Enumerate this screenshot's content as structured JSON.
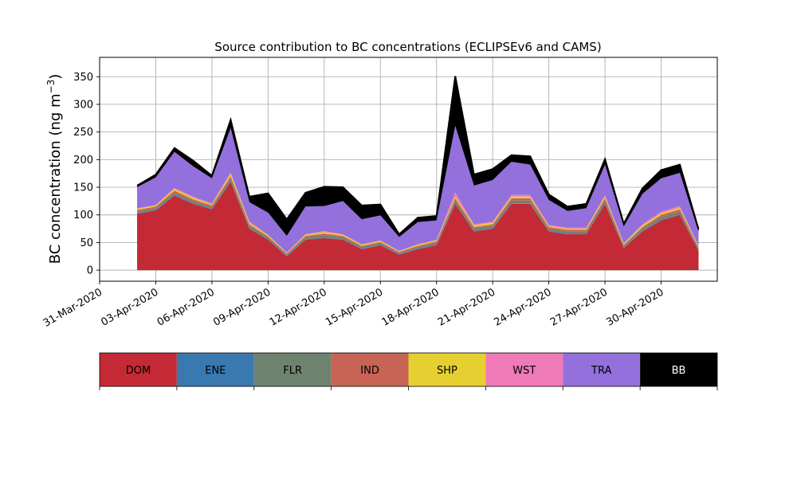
{
  "chart_data": {
    "type": "area",
    "stacked": true,
    "title": "Source contribution to BC concentrations (ECLIPSEv6 and CAMS)",
    "ylabel": "BC concentration (ng m⁻³)",
    "xlabel": "",
    "ylim": [
      -20,
      385
    ],
    "xlim": [
      "2020-03-31",
      "2020-05-03"
    ],
    "grid": true,
    "yticks": [
      0,
      50,
      100,
      150,
      200,
      250,
      300,
      350
    ],
    "xticks": [
      "31-Mar-2020",
      "03-Apr-2020",
      "06-Apr-2020",
      "09-Apr-2020",
      "12-Apr-2020",
      "15-Apr-2020",
      "18-Apr-2020",
      "21-Apr-2020",
      "24-Apr-2020",
      "27-Apr-2020",
      "30-Apr-2020"
    ],
    "legend_position": "bottom colorbar",
    "x": [
      "2020-04-02",
      "2020-04-03",
      "2020-04-04",
      "2020-04-05",
      "2020-04-06",
      "2020-04-07",
      "2020-04-08",
      "2020-04-09",
      "2020-04-10",
      "2020-04-11",
      "2020-04-12",
      "2020-04-13",
      "2020-04-14",
      "2020-04-15",
      "2020-04-16",
      "2020-04-17",
      "2020-04-18",
      "2020-04-19",
      "2020-04-20",
      "2020-04-21",
      "2020-04-22",
      "2020-04-23",
      "2020-04-24",
      "2020-04-25",
      "2020-04-26",
      "2020-04-27",
      "2020-04-28",
      "2020-04-29",
      "2020-04-30",
      "2020-05-01",
      "2020-05-02"
    ],
    "series": [
      {
        "name": "DOM",
        "color": "#c42a35",
        "values": [
          102,
          108,
          135,
          120,
          110,
          160,
          75,
          55,
          25,
          55,
          58,
          55,
          38,
          45,
          28,
          38,
          45,
          120,
          70,
          75,
          120,
          120,
          70,
          65,
          65,
          120,
          40,
          70,
          90,
          100,
          35
        ]
      },
      {
        "name": "ENE",
        "color": "#3a78b0",
        "values": [
          1,
          1,
          1,
          1,
          1,
          1,
          1,
          1,
          1,
          1,
          1,
          1,
          1,
          1,
          1,
          1,
          1,
          1,
          1,
          1,
          1,
          1,
          1,
          1,
          1,
          1,
          1,
          1,
          1,
          1,
          1
        ]
      },
      {
        "name": "FLR",
        "color": "#6e8270",
        "values": [
          3,
          3,
          4,
          4,
          3,
          5,
          4,
          3,
          2,
          3,
          4,
          3,
          3,
          3,
          2,
          3,
          3,
          5,
          4,
          4,
          5,
          5,
          4,
          4,
          4,
          5,
          3,
          4,
          5,
          5,
          3
        ]
      },
      {
        "name": "IND",
        "color": "#c86455",
        "values": [
          3,
          3,
          4,
          3,
          3,
          4,
          3,
          2,
          2,
          3,
          3,
          3,
          2,
          2,
          2,
          2,
          3,
          4,
          3,
          3,
          4,
          4,
          3,
          3,
          3,
          4,
          2,
          3,
          4,
          4,
          2
        ]
      },
      {
        "name": "SHP",
        "color": "#e6cf30",
        "values": [
          2,
          2,
          3,
          3,
          2,
          4,
          3,
          2,
          1,
          2,
          3,
          2,
          2,
          2,
          1,
          2,
          2,
          3,
          3,
          3,
          3,
          3,
          2,
          2,
          2,
          3,
          2,
          3,
          3,
          3,
          2
        ]
      },
      {
        "name": "WST",
        "color": "#f07ab8",
        "values": [
          1,
          1,
          2,
          2,
          2,
          3,
          2,
          1,
          1,
          1,
          2,
          1,
          1,
          1,
          1,
          1,
          1,
          8,
          2,
          2,
          3,
          3,
          2,
          2,
          2,
          3,
          1,
          2,
          3,
          3,
          1
        ]
      },
      {
        "name": "TRA",
        "color": "#9370db",
        "values": [
          38,
          50,
          65,
          55,
          45,
          80,
          35,
          40,
          30,
          50,
          45,
          60,
          45,
          45,
          25,
          40,
          35,
          120,
          70,
          75,
          60,
          55,
          45,
          30,
          35,
          55,
          30,
          55,
          60,
          60,
          25
        ]
      },
      {
        "name": "BB",
        "color": "#000000",
        "values": [
          3,
          5,
          7,
          10,
          5,
          15,
          10,
          35,
          30,
          25,
          35,
          25,
          25,
          20,
          5,
          8,
          8,
          90,
          20,
          20,
          12,
          15,
          10,
          8,
          8,
          10,
          5,
          10,
          15,
          15,
          5
        ]
      }
    ]
  }
}
